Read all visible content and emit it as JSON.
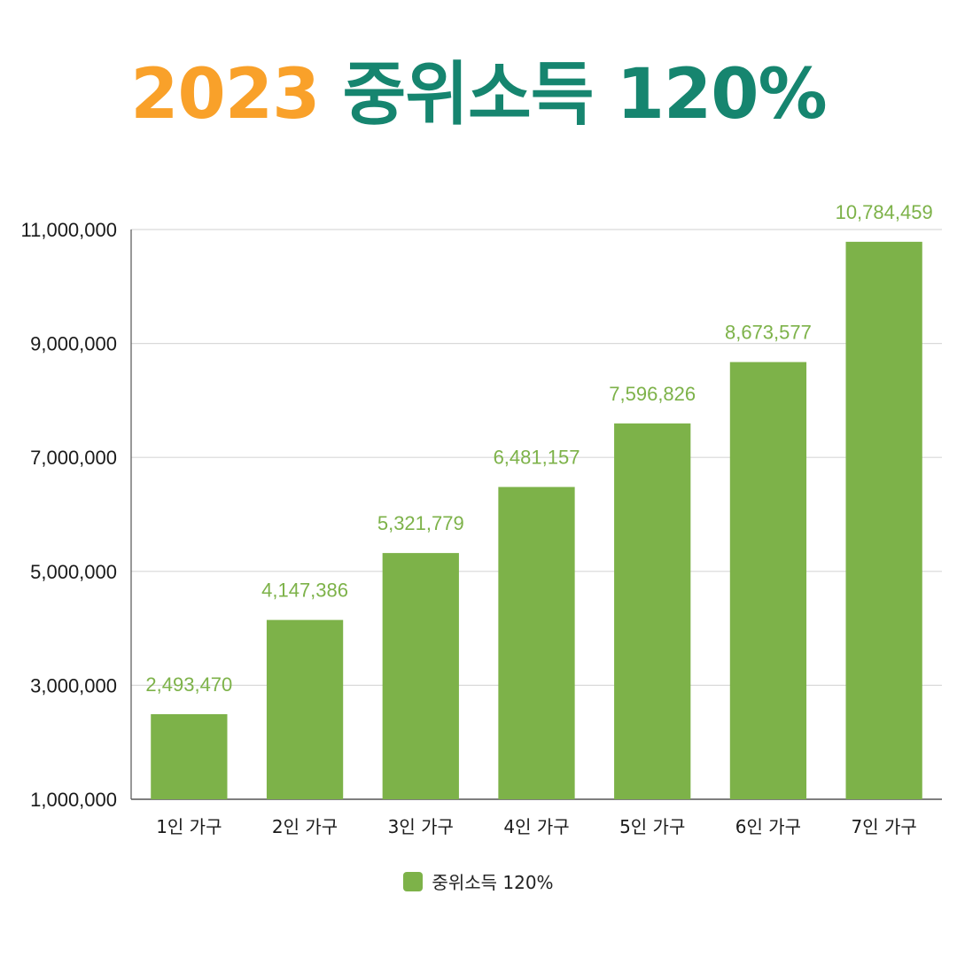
{
  "title": {
    "year": "2023",
    "rest": "중위소득 120%"
  },
  "colors": {
    "bar": "#7db249",
    "year": "#f9a12a",
    "title": "#16856f",
    "grid": "#d9d9d9",
    "axis": "#555555"
  },
  "chart_data": {
    "type": "bar",
    "title": "2023 중위소득 120%",
    "categories": [
      "1인 가구",
      "2인 가구",
      "3인 가구",
      "4인 가구",
      "5인 가구",
      "6인 가구",
      "7인 가구"
    ],
    "series": [
      {
        "name": "중위소득 120%",
        "values": [
          2493470,
          4147386,
          5321779,
          6481157,
          7596826,
          8673577,
          10784459
        ]
      }
    ],
    "data_labels": [
      "2,493,470",
      "4,147,386",
      "5,321,779",
      "6,481,157",
      "7,596,826",
      "8,673,577",
      "10,784,459"
    ],
    "y_ticks": [
      1000000,
      3000000,
      5000000,
      7000000,
      9000000,
      11000000
    ],
    "y_tick_labels": [
      "1,000,000",
      "3,000,000",
      "5,000,000",
      "7,000,000",
      "9,000,000",
      "11,000,000"
    ],
    "ylim": [
      1000000,
      11000000
    ],
    "xlabel": "",
    "ylabel": "",
    "grid": true,
    "legend": "bottom"
  },
  "legend": {
    "label": "중위소득 120%"
  }
}
